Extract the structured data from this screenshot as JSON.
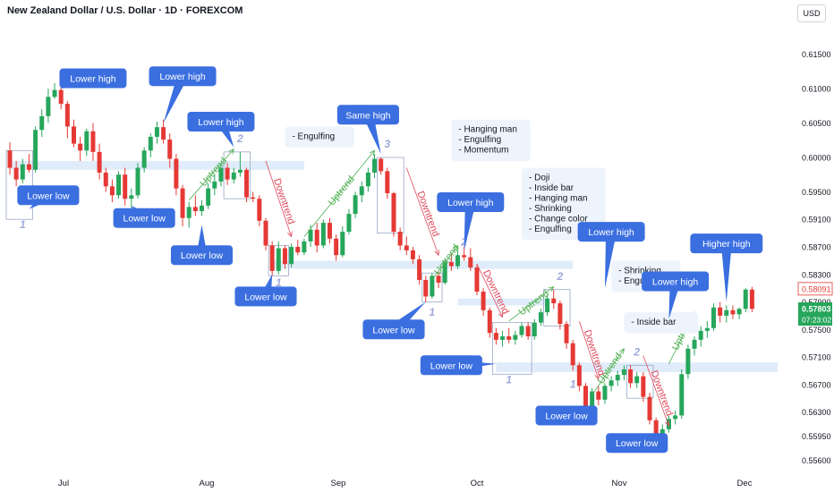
{
  "header": {
    "title": "New Zealand Dollar / U.S. Dollar · 1D · FOREXCOM",
    "currency_button": "USD"
  },
  "colors": {
    "up": "#26a65b",
    "down": "#e53935",
    "callout": "#3b6fe0",
    "zone": "#dbe9f8",
    "label_up": "#4caf50",
    "label_down": "#e0485a",
    "wave": "#9fa8da"
  },
  "chart_data": {
    "type": "candlestick",
    "title": "New Zealand Dollar / U.S. Dollar · 1D · FOREXCOM",
    "ylim": [
      0.5545,
      0.6195
    ],
    "y_ticks": [
      "0.61500",
      "0.61000",
      "0.60500",
      "0.60000",
      "0.59500",
      "0.59100",
      "0.58700",
      "0.58300",
      "0.57900",
      "0.57500",
      "0.57100",
      "0.56700",
      "0.56300",
      "0.55950",
      "0.55600"
    ],
    "x_ticks": [
      "Jul",
      "Aug",
      "Sep",
      "Oct",
      "Nov",
      "Dec"
    ],
    "price_tags": {
      "red_label": "0.58091",
      "red_value": 0.58091,
      "green_label": "0.57803",
      "green_value": 0.57803,
      "countdown": "07:23:02"
    },
    "candles": [
      [
        0.601,
        0.6022,
        0.5975,
        0.5985
      ],
      [
        0.5985,
        0.5995,
        0.5958,
        0.5968
      ],
      [
        0.5968,
        0.5998,
        0.5962,
        0.599
      ],
      [
        0.599,
        0.6005,
        0.5978,
        0.5982
      ],
      [
        0.5982,
        0.6045,
        0.5978,
        0.604
      ],
      [
        0.604,
        0.607,
        0.603,
        0.606
      ],
      [
        0.606,
        0.61,
        0.605,
        0.6088
      ],
      [
        0.6088,
        0.6108,
        0.6085,
        0.6098
      ],
      [
        0.6098,
        0.6105,
        0.607,
        0.6078
      ],
      [
        0.6078,
        0.6082,
        0.6028,
        0.6045
      ],
      [
        0.6045,
        0.6055,
        0.6015,
        0.602
      ],
      [
        0.602,
        0.603,
        0.5995,
        0.601
      ],
      [
        0.601,
        0.6042,
        0.6002,
        0.6038
      ],
      [
        0.6038,
        0.605,
        0.5995,
        0.6008
      ],
      [
        0.6008,
        0.602,
        0.5968,
        0.5978
      ],
      [
        0.5978,
        0.5985,
        0.595,
        0.5958
      ],
      [
        0.5958,
        0.5968,
        0.5935,
        0.5945
      ],
      [
        0.5945,
        0.598,
        0.594,
        0.5975
      ],
      [
        0.5975,
        0.5985,
        0.593,
        0.594
      ],
      [
        0.594,
        0.5955,
        0.592,
        0.5945
      ],
      [
        0.5945,
        0.5992,
        0.594,
        0.5985
      ],
      [
        0.5985,
        0.6015,
        0.5978,
        0.601
      ],
      [
        0.601,
        0.6035,
        0.6,
        0.603
      ],
      [
        0.603,
        0.6052,
        0.602,
        0.6044
      ],
      [
        0.6044,
        0.6055,
        0.602,
        0.6026
      ],
      [
        0.6026,
        0.6035,
        0.5985,
        0.5998
      ],
      [
        0.5998,
        0.6005,
        0.5945,
        0.5955
      ],
      [
        0.5955,
        0.596,
        0.59,
        0.5912
      ],
      [
        0.5912,
        0.5935,
        0.5898,
        0.5928
      ],
      [
        0.5928,
        0.5945,
        0.5915,
        0.5922
      ],
      [
        0.5922,
        0.5938,
        0.5915,
        0.593
      ],
      [
        0.593,
        0.5962,
        0.5925,
        0.5955
      ],
      [
        0.5955,
        0.5975,
        0.5945,
        0.5965
      ],
      [
        0.5965,
        0.599,
        0.5958,
        0.5985
      ],
      [
        0.5985,
        0.5992,
        0.596,
        0.5968
      ],
      [
        0.5968,
        0.5985,
        0.5962,
        0.5978
      ],
      [
        0.5978,
        0.6008,
        0.5972,
        0.5982
      ],
      [
        0.5982,
        0.5985,
        0.5935,
        0.5942
      ],
      [
        0.5942,
        0.595,
        0.5935,
        0.594
      ],
      [
        0.594,
        0.5945,
        0.59,
        0.5908
      ],
      [
        0.5908,
        0.5912,
        0.5865,
        0.5872
      ],
      [
        0.5872,
        0.5878,
        0.5828,
        0.5835
      ],
      [
        0.5835,
        0.5878,
        0.583,
        0.5868
      ],
      [
        0.5868,
        0.5872,
        0.5838,
        0.5845
      ],
      [
        0.5845,
        0.5875,
        0.584,
        0.587
      ],
      [
        0.587,
        0.588,
        0.5858,
        0.5862
      ],
      [
        0.5862,
        0.5882,
        0.5858,
        0.5878
      ],
      [
        0.5878,
        0.5902,
        0.587,
        0.5895
      ],
      [
        0.5895,
        0.5905,
        0.5862,
        0.5872
      ],
      [
        0.5872,
        0.591,
        0.5868,
        0.5905
      ],
      [
        0.5905,
        0.5912,
        0.5875,
        0.5882
      ],
      [
        0.5882,
        0.5888,
        0.585,
        0.5858
      ],
      [
        0.5858,
        0.59,
        0.5855,
        0.5892
      ],
      [
        0.5892,
        0.5925,
        0.5888,
        0.5918
      ],
      [
        0.5918,
        0.595,
        0.5912,
        0.5945
      ],
      [
        0.5945,
        0.5965,
        0.5935,
        0.5958
      ],
      [
        0.5958,
        0.5985,
        0.595,
        0.5978
      ],
      [
        0.5978,
        0.6005,
        0.597,
        0.5998
      ],
      [
        0.5998,
        0.6,
        0.5975,
        0.598
      ],
      [
        0.598,
        0.5985,
        0.594,
        0.5948
      ],
      [
        0.5948,
        0.595,
        0.5885,
        0.5892
      ],
      [
        0.5892,
        0.5898,
        0.5865,
        0.5872
      ],
      [
        0.5872,
        0.5885,
        0.5858,
        0.5865
      ],
      [
        0.5865,
        0.587,
        0.5845,
        0.5852
      ],
      [
        0.5852,
        0.5858,
        0.5815,
        0.5822
      ],
      [
        0.5822,
        0.5828,
        0.579,
        0.5798
      ],
      [
        0.5798,
        0.5832,
        0.5795,
        0.5828
      ],
      [
        0.5828,
        0.5835,
        0.581,
        0.5818
      ],
      [
        0.5818,
        0.5852,
        0.5815,
        0.5848
      ],
      [
        0.5848,
        0.586,
        0.5835,
        0.5842
      ],
      [
        0.5842,
        0.5865,
        0.5838,
        0.5858
      ],
      [
        0.5858,
        0.587,
        0.585,
        0.5855
      ],
      [
        0.5855,
        0.5868,
        0.5835,
        0.584
      ],
      [
        0.584,
        0.5845,
        0.58,
        0.5805
      ],
      [
        0.5805,
        0.581,
        0.577,
        0.5778
      ],
      [
        0.5778,
        0.5782,
        0.5738,
        0.5745
      ],
      [
        0.5745,
        0.5752,
        0.5728,
        0.5735
      ],
      [
        0.5735,
        0.5748,
        0.5725,
        0.574
      ],
      [
        0.574,
        0.5752,
        0.573,
        0.5735
      ],
      [
        0.5735,
        0.5748,
        0.5728,
        0.5742
      ],
      [
        0.5742,
        0.576,
        0.5738,
        0.5755
      ],
      [
        0.5755,
        0.576,
        0.5735,
        0.574
      ],
      [
        0.574,
        0.5765,
        0.5735,
        0.576
      ],
      [
        0.576,
        0.578,
        0.5755,
        0.5775
      ],
      [
        0.5775,
        0.58,
        0.577,
        0.5795
      ],
      [
        0.5795,
        0.5808,
        0.578,
        0.5788
      ],
      [
        0.5788,
        0.5792,
        0.575,
        0.5758
      ],
      [
        0.5758,
        0.5762,
        0.5722,
        0.573
      ],
      [
        0.573,
        0.5735,
        0.569,
        0.5698
      ],
      [
        0.5698,
        0.5702,
        0.566,
        0.5668
      ],
      [
        0.5668,
        0.5672,
        0.5628,
        0.5638
      ],
      [
        0.5638,
        0.5665,
        0.5632,
        0.566
      ],
      [
        0.566,
        0.5668,
        0.564,
        0.5648
      ],
      [
        0.5648,
        0.5672,
        0.5642,
        0.5668
      ],
      [
        0.5668,
        0.5682,
        0.566,
        0.5676
      ],
      [
        0.5676,
        0.569,
        0.5668,
        0.5684
      ],
      [
        0.5684,
        0.5698,
        0.5676,
        0.5692
      ],
      [
        0.5692,
        0.5698,
        0.5665,
        0.5672
      ],
      [
        0.5672,
        0.5688,
        0.5665,
        0.5682
      ],
      [
        0.5682,
        0.5688,
        0.5645,
        0.5652
      ],
      [
        0.5652,
        0.5658,
        0.5612,
        0.5618
      ],
      [
        0.5618,
        0.5622,
        0.5585,
        0.559
      ],
      [
        0.559,
        0.5612,
        0.558,
        0.5605
      ],
      [
        0.5605,
        0.5625,
        0.56,
        0.562
      ],
      [
        0.562,
        0.5632,
        0.5612,
        0.5625
      ],
      [
        0.5625,
        0.5692,
        0.562,
        0.5685
      ],
      [
        0.5685,
        0.5728,
        0.5678,
        0.5722
      ],
      [
        0.5722,
        0.574,
        0.5712,
        0.5735
      ],
      [
        0.5735,
        0.5755,
        0.5725,
        0.5748
      ],
      [
        0.5748,
        0.5762,
        0.5738,
        0.5752
      ],
      [
        0.5752,
        0.5788,
        0.5748,
        0.5782
      ],
      [
        0.5782,
        0.579,
        0.576,
        0.577
      ],
      [
        0.577,
        0.5785,
        0.576,
        0.5778
      ],
      [
        0.5778,
        0.5785,
        0.5765,
        0.5772
      ],
      [
        0.5772,
        0.5782,
        0.5765,
        0.578
      ],
      [
        0.578,
        0.581,
        0.5775,
        0.5808
      ],
      [
        0.5808,
        0.5812,
        0.5775,
        0.578
      ]
    ],
    "support_zones": [
      {
        "x0": 0,
        "x1": 46,
        "y0": 0.5995,
        "y1": 0.5982
      },
      {
        "x0": 41,
        "x1": 88,
        "y0": 0.585,
        "y1": 0.5838
      },
      {
        "x0": 70,
        "x1": 84,
        "y0": 0.5795,
        "y1": 0.5785
      },
      {
        "x0": 76,
        "x1": 120,
        "y0": 0.5702,
        "y1": 0.5688
      }
    ],
    "pattern_boxes": [
      {
        "x0": 0,
        "x1": 3,
        "y0": 0.601,
        "y1": 0.591
      },
      {
        "x0": 34,
        "x1": 37,
        "y0": 0.6008,
        "y1": 0.594
      },
      {
        "x0": 41,
        "x1": 43,
        "y0": 0.5872,
        "y1": 0.5828
      },
      {
        "x0": 58,
        "x1": 61,
        "y0": 0.6,
        "y1": 0.589
      },
      {
        "x0": 65,
        "x1": 67,
        "y0": 0.5832,
        "y1": 0.579
      },
      {
        "x0": 76,
        "x1": 81,
        "y0": 0.576,
        "y1": 0.5685
      },
      {
        "x0": 84,
        "x1": 87,
        "y0": 0.5808,
        "y1": 0.5755
      },
      {
        "x0": 97,
        "x1": 100,
        "y0": 0.5698,
        "y1": 0.565
      }
    ],
    "wave_labels": [
      {
        "text": "1",
        "x": 2,
        "y": 0.5897
      },
      {
        "text": "2",
        "x": 36,
        "y": 0.6022
      },
      {
        "text": "1",
        "x": 42,
        "y": 0.5813
      },
      {
        "text": "3",
        "x": 59,
        "y": 0.6014
      },
      {
        "text": "1",
        "x": 66,
        "y": 0.577
      },
      {
        "text": "2",
        "x": 71,
        "y": 0.5872
      },
      {
        "text": "1",
        "x": 78,
        "y": 0.5672
      },
      {
        "text": "2",
        "x": 86,
        "y": 0.5822
      },
      {
        "text": "1",
        "x": 88,
        "y": 0.5665
      },
      {
        "text": "2",
        "x": 98,
        "y": 0.5712
      }
    ],
    "trend_arrows": [
      {
        "text": "Uptrend",
        "x0": 28,
        "y0": 0.5938,
        "x1": 35,
        "y1": 0.6012,
        "dir": "up"
      },
      {
        "text": "Downtrend",
        "x0": 40,
        "y0": 0.5995,
        "x1": 44,
        "y1": 0.5885,
        "dir": "down"
      },
      {
        "text": "Uptrend",
        "x0": 46,
        "y0": 0.5885,
        "x1": 57,
        "y1": 0.601,
        "dir": "up"
      },
      {
        "text": "Downtrend",
        "x0": 62,
        "y0": 0.5985,
        "x1": 67,
        "y1": 0.5858,
        "dir": "down"
      },
      {
        "text": "Uptrend",
        "x0": 66,
        "y0": 0.5822,
        "x1": 70,
        "y1": 0.5872,
        "dir": "up"
      },
      {
        "text": "Downtrend",
        "x0": 73,
        "y0": 0.5845,
        "x1": 77,
        "y1": 0.5768,
        "dir": "down"
      },
      {
        "text": "Uptrend",
        "x0": 78,
        "y0": 0.5762,
        "x1": 85,
        "y1": 0.5812,
        "dir": "up"
      },
      {
        "text": "Downtrend",
        "x0": 89,
        "y0": 0.5762,
        "x1": 92,
        "y1": 0.5678,
        "dir": "down"
      },
      {
        "text": "Uptrend",
        "x0": 91,
        "y0": 0.5655,
        "x1": 96,
        "y1": 0.5722,
        "dir": "up"
      },
      {
        "text": "Downtrend",
        "x0": 99,
        "y0": 0.5712,
        "x1": 103,
        "y1": 0.561,
        "dir": "down"
      },
      {
        "text": "Uptrend",
        "x0": 103,
        "y0": 0.57,
        "x1": 107,
        "y1": 0.5775,
        "dir": "up"
      }
    ],
    "callouts": [
      {
        "text": "Lower high",
        "x": 13,
        "y": 0.6115,
        "tx": 8,
        "ty": 0.61
      },
      {
        "text": "Lower low",
        "x": 6,
        "y": 0.5945,
        "tx": 3,
        "ty": 0.5925
      },
      {
        "text": "Lower high",
        "x": 27,
        "y": 0.6118,
        "tx": 24,
        "ty": 0.605
      },
      {
        "text": "Lower low",
        "x": 21,
        "y": 0.5912,
        "tx": 19,
        "ty": 0.593
      },
      {
        "text": "Lower high",
        "x": 33,
        "y": 0.6052,
        "tx": 35,
        "ty": 0.6015
      },
      {
        "text": "Lower low",
        "x": 30,
        "y": 0.5858,
        "tx": 30,
        "ty": 0.5902
      },
      {
        "text": "Lower low",
        "x": 40,
        "y": 0.5798,
        "tx": 41,
        "ty": 0.583
      },
      {
        "text": "Same high",
        "x": 56,
        "y": 0.6062,
        "tx": 58,
        "ty": 0.6005
      },
      {
        "text": "Lower high",
        "x": 72,
        "y": 0.5935,
        "tx": 71,
        "ty": 0.5865
      },
      {
        "text": "Lower low",
        "x": 60,
        "y": 0.575,
        "tx": 65,
        "ty": 0.579
      },
      {
        "text": "Lower low",
        "x": 69,
        "y": 0.5698,
        "tx": 76,
        "ty": 0.57
      },
      {
        "text": "Lower high",
        "x": 94,
        "y": 0.5892,
        "tx": 93,
        "ty": 0.581
      },
      {
        "text": "Lower low",
        "x": 87,
        "y": 0.5625,
        "tx": 90,
        "ty": 0.564
      },
      {
        "text": "Lower high",
        "x": 104,
        "y": 0.582,
        "tx": 103,
        "ty": 0.5765
      },
      {
        "text": "Lower low",
        "x": 98,
        "y": 0.5585,
        "tx": 101,
        "ty": 0.56
      },
      {
        "text": "Higher high",
        "x": 112,
        "y": 0.5875,
        "tx": 112,
        "ty": 0.579
      }
    ],
    "notes": [
      {
        "x": 43,
        "y": 0.6045,
        "lines": [
          "- Engulfing"
        ]
      },
      {
        "x": 69,
        "y": 0.6055,
        "lines": [
          "- Hanging man",
          "- Engulfing",
          "- Momentum"
        ]
      },
      {
        "x": 80,
        "y": 0.5985,
        "lines": [
          "- Doji",
          "- Inside bar",
          "- Hanging man",
          "- Shrinking",
          "- Change color",
          "- Engulfing"
        ]
      },
      {
        "x": 94,
        "y": 0.585,
        "lines": [
          "- Shrinking",
          "- Engulfing"
        ]
      },
      {
        "x": 96,
        "y": 0.5775,
        "lines": [
          "- Inside bar"
        ]
      }
    ]
  }
}
